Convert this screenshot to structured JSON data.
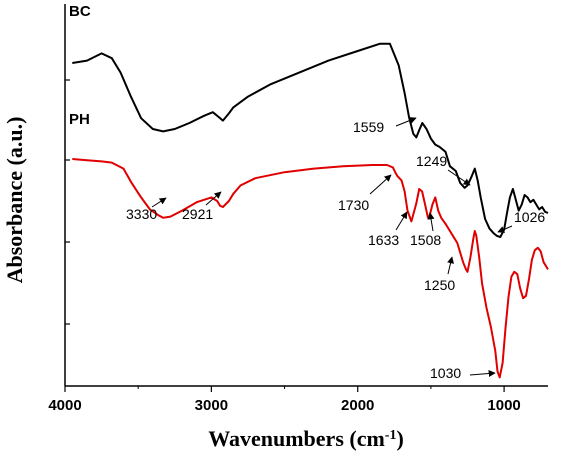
{
  "chart_data": {
    "type": "line",
    "xlabel": "Wavenumbers (cm",
    "xlabel_sup": "-1",
    "xlabel_close": ")",
    "ylabel": "Absorbance (a.u.)",
    "xlim": [
      4000,
      700
    ],
    "x_reversed": true,
    "xticks": [
      4000,
      3000,
      2000,
      1000
    ],
    "xtick_labels": [
      "4000",
      "3000",
      "2000",
      "1000"
    ],
    "y_tick_labels_shown": false,
    "grid": false,
    "legend": "none",
    "series": [
      {
        "name": "BC",
        "color": "#000000",
        "x": [
          3950,
          3850,
          3750,
          3680,
          3620,
          3550,
          3480,
          3400,
          3330,
          3250,
          3150,
          3050,
          2990,
          2950,
          2921,
          2880,
          2850,
          2750,
          2600,
          2400,
          2200,
          2000,
          1850,
          1780,
          1720,
          1680,
          1650,
          1620,
          1600,
          1580,
          1559,
          1530,
          1500,
          1470,
          1440,
          1400,
          1370,
          1330,
          1300,
          1270,
          1249,
          1220,
          1200,
          1180,
          1160,
          1130,
          1100,
          1070,
          1050,
          1026,
          1000,
          980,
          960,
          940,
          920,
          900,
          880,
          860,
          840,
          820,
          800,
          780,
          760,
          740,
          720,
          700
        ],
        "y": [
          2.6,
          2.62,
          2.68,
          2.64,
          2.52,
          2.32,
          2.14,
          2.05,
          2.03,
          2.05,
          2.1,
          2.16,
          2.19,
          2.15,
          2.12,
          2.18,
          2.23,
          2.32,
          2.42,
          2.52,
          2.62,
          2.7,
          2.76,
          2.76,
          2.58,
          2.35,
          2.15,
          2.01,
          1.98,
          2.04,
          2.1,
          2.05,
          1.97,
          1.92,
          1.9,
          1.86,
          1.74,
          1.7,
          1.6,
          1.56,
          1.58,
          1.66,
          1.72,
          1.62,
          1.48,
          1.3,
          1.22,
          1.18,
          1.16,
          1.15,
          1.21,
          1.35,
          1.48,
          1.55,
          1.46,
          1.37,
          1.42,
          1.5,
          1.48,
          1.44,
          1.46,
          1.42,
          1.38,
          1.4,
          1.36,
          1.35
        ]
      },
      {
        "name": "PH",
        "color": "#e00000",
        "x": [
          3950,
          3850,
          3750,
          3680,
          3600,
          3550,
          3480,
          3420,
          3360,
          3330,
          3280,
          3200,
          3100,
          3000,
          2960,
          2940,
          2921,
          2880,
          2850,
          2800,
          2700,
          2500,
          2300,
          2100,
          1900,
          1800,
          1760,
          1740,
          1730,
          1700,
          1680,
          1660,
          1633,
          1600,
          1580,
          1560,
          1540,
          1520,
          1508,
          1490,
          1470,
          1450,
          1430,
          1400,
          1380,
          1350,
          1320,
          1300,
          1280,
          1260,
          1250,
          1230,
          1210,
          1200,
          1190,
          1170,
          1150,
          1120,
          1090,
          1060,
          1045,
          1030,
          1010,
          990,
          970,
          950,
          930,
          910,
          890,
          870,
          850,
          830,
          810,
          790,
          770,
          750,
          730,
          700
        ],
        "y": [
          1.8,
          1.79,
          1.78,
          1.77,
          1.72,
          1.61,
          1.48,
          1.38,
          1.33,
          1.31,
          1.32,
          1.37,
          1.44,
          1.48,
          1.45,
          1.41,
          1.4,
          1.45,
          1.51,
          1.58,
          1.64,
          1.69,
          1.72,
          1.74,
          1.75,
          1.75,
          1.73,
          1.68,
          1.66,
          1.62,
          1.53,
          1.37,
          1.28,
          1.43,
          1.55,
          1.53,
          1.42,
          1.31,
          1.33,
          1.42,
          1.48,
          1.37,
          1.31,
          1.26,
          1.22,
          1.16,
          1.1,
          1.02,
          0.94,
          0.88,
          0.86,
          0.98,
          1.14,
          1.2,
          1.16,
          0.98,
          0.76,
          0.56,
          0.4,
          0.2,
          0.03,
          -0.02,
          0.1,
          0.4,
          0.65,
          0.82,
          0.86,
          0.84,
          0.72,
          0.64,
          0.66,
          0.8,
          0.96,
          1.04,
          1.06,
          1.03,
          0.94,
          0.88
        ]
      }
    ],
    "annotations": [
      {
        "text": "1559"
      },
      {
        "text": "1249"
      },
      {
        "text": "1026"
      },
      {
        "text": "3330"
      },
      {
        "text": "2921"
      },
      {
        "text": "1730"
      },
      {
        "text": "1633"
      },
      {
        "text": "1508"
      },
      {
        "text": "1250"
      },
      {
        "text": "1030"
      }
    ]
  }
}
